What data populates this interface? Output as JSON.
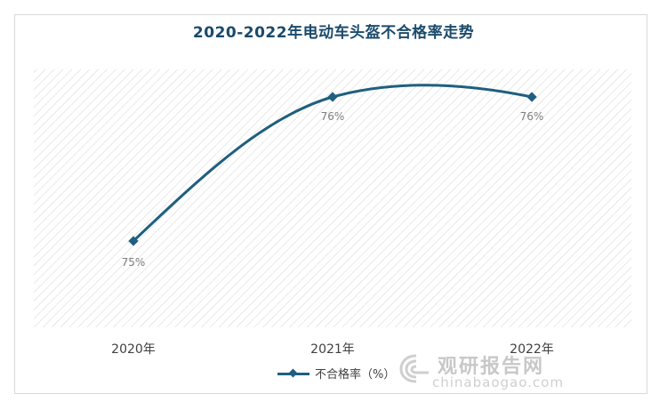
{
  "title": "2020-2022年电动车头盔不合格率走势",
  "colors": {
    "title": "#1a4a6b",
    "line": "#1f5f7f",
    "hatch": "#d9d9d9",
    "label": "#7f7f7f",
    "tick": "#404040"
  },
  "legend": {
    "label": "不合格率（%）"
  },
  "watermark": {
    "cn": "观研报告网",
    "en": "chinabaogao.com"
  },
  "chart_data": {
    "type": "line",
    "categories": [
      "2020年",
      "2021年",
      "2022年"
    ],
    "series": [
      {
        "name": "不合格率（%）",
        "values": [
          75,
          76,
          76
        ],
        "data_labels": [
          "75%",
          "76%",
          "76%"
        ],
        "marker": "diamond",
        "smooth": true
      }
    ],
    "title": "2020-2022年电动车头盔不合格率走势",
    "xlabel": "",
    "ylabel": "",
    "grid": false,
    "legend_position": "bottom"
  }
}
